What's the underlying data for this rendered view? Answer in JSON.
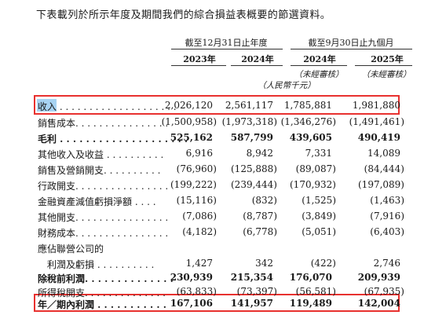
{
  "intro": "下表載列於所示年度及期間我們的綜合損益表概要的節選資料。",
  "groups": [
    {
      "label": "截至12月31日止年度"
    },
    {
      "label": "截至9月30日止九個月"
    }
  ],
  "years": [
    {
      "label": "2023年",
      "note": ""
    },
    {
      "label": "2024年",
      "note": ""
    },
    {
      "label": "2024年",
      "note": "（未經審核）"
    },
    {
      "label": "2025年",
      "note": "（未經審核）"
    }
  ],
  "unit": "（人民幣千元）",
  "rows": [
    {
      "label": "收入 . . . . . . . . . . . . . . . . . . . .",
      "values": [
        "2,026,120",
        "2,561,117",
        "1,785,881",
        "1,981,880"
      ],
      "bold": false,
      "highlight": true
    },
    {
      "label": "銷售成本. . . . . . . . . . . . . . . .",
      "values": [
        "(1,500,958)",
        "(1,973,318)",
        "(1,346,276)",
        "(1,491,461)"
      ],
      "bold": false
    },
    {
      "label": "毛利 . . . . . . . . . . . . . . . . . . . .",
      "values": [
        "525,162",
        "587,799",
        "439,605",
        "490,419"
      ],
      "bold": true
    },
    {
      "label": "其他收入及收益 . . . . . . . . . .",
      "values": [
        "6,916",
        "8,942",
        "7,331",
        "14,089"
      ],
      "bold": false
    },
    {
      "label": "銷售及營銷開支. . . . . . . . . .",
      "values": [
        "(76,960)",
        "(125,888)",
        "(89,087)",
        "(84,444)"
      ],
      "bold": false
    },
    {
      "label": "行政開支. . . . . . . . . . . . . . . .",
      "values": [
        "(199,222)",
        "(239,444)",
        "(170,932)",
        "(197,089)"
      ],
      "bold": false
    },
    {
      "label": "金融資產減值虧損淨額 . . . .",
      "values": [
        "(15,116)",
        "(832)",
        "(1,525)",
        "(1,463)"
      ],
      "bold": false
    },
    {
      "label": "其他開支. . . . . . . . . . . . . . . .",
      "values": [
        "(7,086)",
        "(8,787)",
        "(3,849)",
        "(7,916)"
      ],
      "bold": false
    },
    {
      "label": "財務成本. . . . . . . . . . . . . . . .",
      "values": [
        "(4,182)",
        "(6,778)",
        "(5,051)",
        "(6,403)"
      ],
      "bold": false
    },
    {
      "label": "應佔聯營公司的",
      "values": [
        "",
        "",
        "",
        ""
      ],
      "bold": false
    },
    {
      "label": "　利潤及虧損 . . . . . . . . . .",
      "values": [
        "1,427",
        "342",
        "(422)",
        "2,746"
      ],
      "bold": false
    },
    {
      "label": "除稅前利潤. . . . . . . . . . . . . .",
      "values": [
        "230,939",
        "215,354",
        "176,070",
        "209,939"
      ],
      "bold": true
    },
    {
      "label": "所得稅開支. . . . . . . . . . . . . .",
      "values": [
        "(63,833)",
        "(73,397)",
        "(56,581)",
        "(67,935)"
      ],
      "bold": false
    },
    {
      "label": "年／期內利潤 . . . . . . . . . . .",
      "values": [
        "167,106",
        "141,957",
        "119,489",
        "142,004"
      ],
      "bold": true,
      "highlight": true
    }
  ]
}
